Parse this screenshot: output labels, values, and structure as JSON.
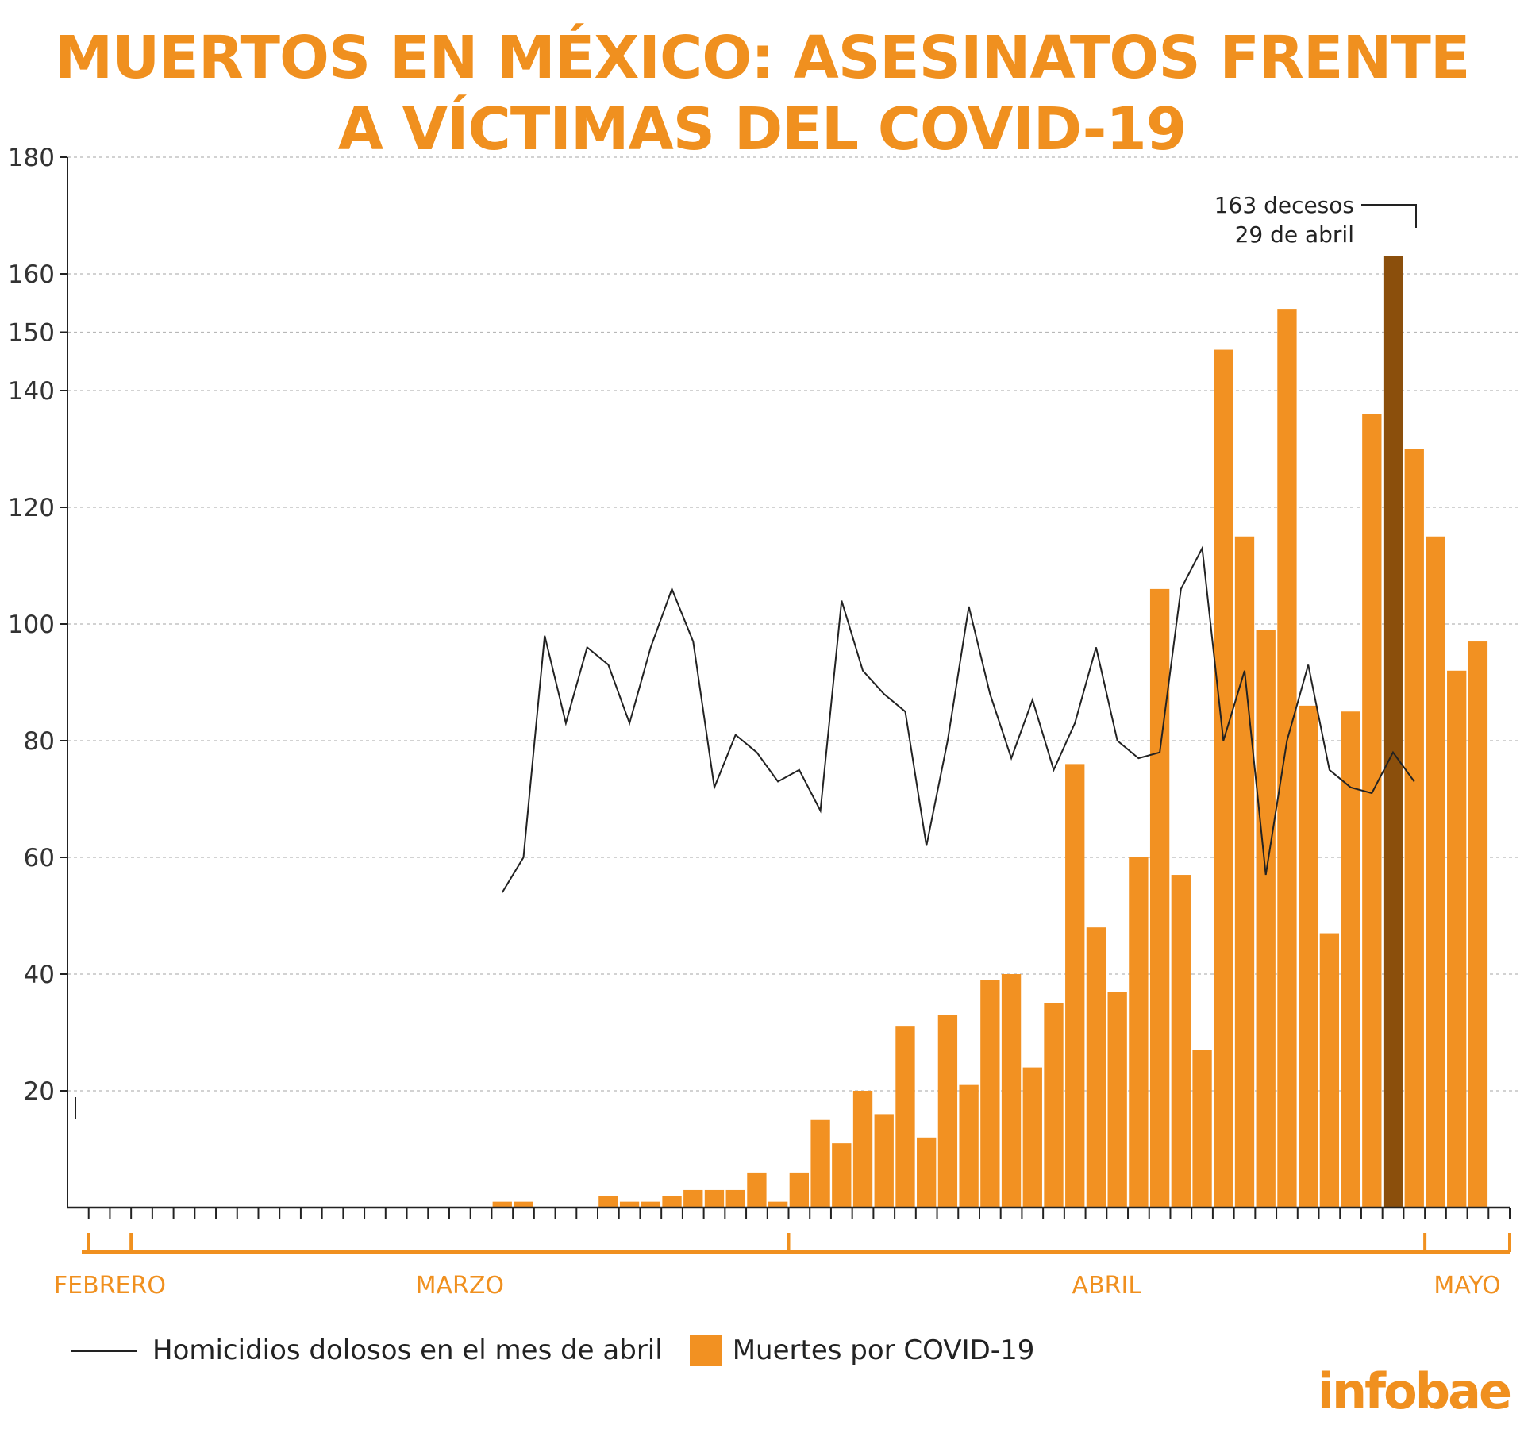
{
  "title_line1": "MUERTOS EN MÉXICO: ASESINATOS FRENTE",
  "title_line2": "A VÍCTIMAS DEL COVID-19",
  "colors": {
    "bar": "#f29122",
    "highlight_bar": "#8b4f0c",
    "line": "#222222",
    "accent": "#f0901f"
  },
  "annotation": {
    "line1": "163 decesos",
    "line2": "29 de abril"
  },
  "months": [
    "FEBRERO",
    "MARZO",
    "ABRIL",
    "MAYO"
  ],
  "legend": {
    "line_label": "Homicidios dolosos en el mes de abril",
    "bar_label": "Muertes por COVID-19"
  },
  "logo": "infobae",
  "chart_data": {
    "type": "bar",
    "title": "MUERTOS EN MÉXICO: ASESINATOS FRENTE A VÍCTIMAS DEL COVID-19",
    "ylim": [
      0,
      180
    ],
    "yticks": [
      20,
      40,
      60,
      80,
      100,
      120,
      140,
      150,
      160,
      180
    ],
    "grid": true,
    "legend_position": "bottom-left",
    "highlight_index": 62,
    "x_start": "2020-02-27",
    "x_end": "2020-05-04",
    "series": [
      {
        "name": "Muertes por COVID-19",
        "type": "bar",
        "x": [
          "2020-03-18",
          "2020-03-19",
          "2020-03-23",
          "2020-03-24",
          "2020-03-25",
          "2020-03-26",
          "2020-03-27",
          "2020-03-28",
          "2020-03-29",
          "2020-03-30",
          "2020-03-31",
          "2020-04-01",
          "2020-04-02",
          "2020-04-03",
          "2020-04-04",
          "2020-04-05",
          "2020-04-06",
          "2020-04-07",
          "2020-04-08",
          "2020-04-09",
          "2020-04-10",
          "2020-04-11",
          "2020-04-12",
          "2020-04-13",
          "2020-04-14",
          "2020-04-15",
          "2020-04-16",
          "2020-04-17",
          "2020-04-18",
          "2020-04-19",
          "2020-04-20",
          "2020-04-21",
          "2020-04-22",
          "2020-04-23",
          "2020-04-24",
          "2020-04-25",
          "2020-04-26",
          "2020-04-27",
          "2020-04-28",
          "2020-04-29",
          "2020-04-30",
          "2020-05-01",
          "2020-05-02",
          "2020-05-03"
        ],
        "values": [
          1,
          1,
          2,
          1,
          1,
          2,
          3,
          3,
          3,
          6,
          1,
          6,
          15,
          11,
          20,
          16,
          31,
          12,
          33,
          21,
          39,
          40,
          24,
          35,
          76,
          48,
          37,
          60,
          106,
          57,
          27,
          147,
          115,
          99,
          154,
          86,
          47,
          85,
          136,
          163,
          130,
          115,
          92,
          97
        ]
      },
      {
        "name": "Homicidios dolosos en el mes de abril",
        "type": "line",
        "x": [
          "2020-03-18",
          "2020-03-19",
          "2020-03-20",
          "2020-03-21",
          "2020-03-22",
          "2020-03-23",
          "2020-03-24",
          "2020-03-25",
          "2020-03-26",
          "2020-03-27",
          "2020-03-28",
          "2020-03-29",
          "2020-03-30",
          "2020-03-31",
          "2020-04-01",
          "2020-04-02",
          "2020-04-03",
          "2020-04-04",
          "2020-04-05",
          "2020-04-06",
          "2020-04-07",
          "2020-04-08",
          "2020-04-09",
          "2020-04-10",
          "2020-04-11",
          "2020-04-12",
          "2020-04-13",
          "2020-04-14",
          "2020-04-15",
          "2020-04-16",
          "2020-04-17",
          "2020-04-18",
          "2020-04-19",
          "2020-04-20",
          "2020-04-21",
          "2020-04-22",
          "2020-04-23",
          "2020-04-24",
          "2020-04-25",
          "2020-04-26",
          "2020-04-27",
          "2020-04-28",
          "2020-04-29",
          "2020-04-30"
        ],
        "values": [
          54,
          60,
          98,
          83,
          96,
          93,
          83,
          96,
          106,
          97,
          72,
          81,
          78,
          73,
          75,
          68,
          104,
          92,
          88,
          85,
          62,
          80,
          103,
          88,
          77,
          87,
          75,
          83,
          96,
          80,
          77,
          78,
          106,
          113,
          80,
          92,
          57,
          80,
          93,
          75,
          72,
          71,
          78,
          73
        ]
      }
    ]
  }
}
